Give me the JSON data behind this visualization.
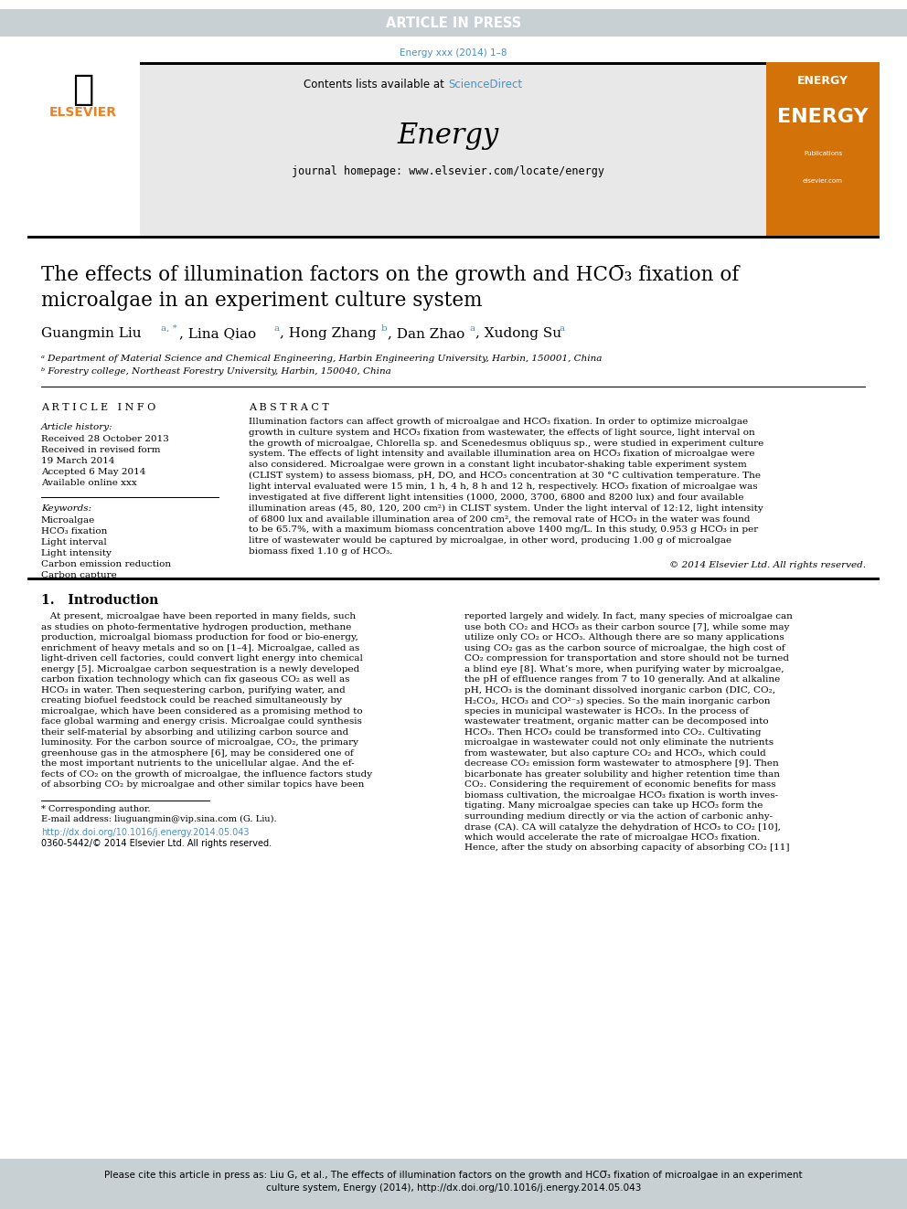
{
  "article_in_press_bg": "#c8d0d4",
  "article_in_press_text": "ARTICLE IN PRESS",
  "journal_ref": "Energy xxx (2014) 1–8",
  "journal_ref_color": "#4a90c4",
  "contents_text": "Contents lists available at ",
  "science_direct": "ScienceDirect",
  "science_direct_color": "#4a90c4",
  "journal_name": "Energy",
  "journal_homepage": "journal homepage: www.elsevier.com/locate/energy",
  "elsevier_color": "#f08020",
  "article_info_header": "A R T I C L E   I N F O",
  "abstract_header": "A B S T R A C T",
  "article_history_label": "Article history:",
  "received": "Received 28 October 2013",
  "received_revised": "Received in revised form",
  "revised_date": "19 March 2014",
  "accepted": "Accepted 6 May 2014",
  "available": "Available online xxx",
  "keywords_label": "Keywords:",
  "kw1": "Microalgae",
  "kw2": "HCO̅₃ fixation",
  "kw3": "Light interval",
  "kw4": "Light intensity",
  "kw5": "Carbon emission reduction",
  "kw6": "Carbon capture",
  "abstract_lines": [
    "Illumination factors can affect growth of microalgae and HCO̅₃ fixation. In order to optimize microalgae",
    "growth in culture system and HCO̅₃ fixation from wastewater, the effects of light source, light interval on",
    "the growth of microalgae, Chlorella sp. and Scenedesmus obliquus sp., were studied in experiment culture",
    "system. The effects of light intensity and available illumination area on HCO̅₃ fixation of microalgae were",
    "also considered. Microalgae were grown in a constant light incubator-shaking table experiment system",
    "(CLIST system) to assess biomass, pH, DO, and HCO̅₃ concentration at 30 °C cultivation temperature. The",
    "light interval evaluated were 15 min, 1 h, 4 h, 8 h and 12 h, respectively. HCO̅₃ fixation of microalgae was",
    "investigated at five different light intensities (1000, 2000, 3700, 6800 and 8200 lux) and four available",
    "illumination areas (45, 80, 120, 200 cm²) in CLIST system. Under the light interval of 12:12, light intensity",
    "of 6800 lux and available illumination area of 200 cm², the removal rate of HCO̅₃ in the water was found",
    "to be 65.7%, with a maximum biomass concentration above 1400 mg/L. In this study, 0.953 g HCO̅₃ in per",
    "litre of wastewater would be captured by microalgae, in other word, producing 1.00 g of microalgae",
    "biomass fixed 1.10 g of HCO̅₃."
  ],
  "copyright": "© 2014 Elsevier Ltd. All rights reserved.",
  "intro_header": "1.   Introduction",
  "intro_col1_lines": [
    "   At present, microalgae have been reported in many fields, such",
    "as studies on photo-fermentative hydrogen production, methane",
    "production, microalgal biomass production for food or bio-energy,",
    "enrichment of heavy metals and so on [1–4]. Microalgae, called as",
    "light-driven cell factories, could convert light energy into chemical",
    "energy [5]. Microalgae carbon sequestration is a newly developed",
    "carbon fixation technology which can fix gaseous CO₂ as well as",
    "HCO̅₃ in water. Then sequestering carbon, purifying water, and",
    "creating biofuel feedstock could be reached simultaneously by",
    "microalgae, which have been considered as a promising method to",
    "face global warming and energy crisis. Microalgae could synthesis",
    "their self-material by absorbing and utilizing carbon source and",
    "luminosity. For the carbon source of microalgae, CO₂, the primary",
    "greenhouse gas in the atmosphere [6], may be considered one of",
    "the most important nutrients to the unicellular algae. And the ef-",
    "fects of CO₂ on the growth of microalgae, the influence factors study",
    "of absorbing CO₂ by microalgae and other similar topics have been"
  ],
  "intro_col2_lines": [
    "reported largely and widely. In fact, many species of microalgae can",
    "use both CO₂ and HCO̅₃ as their carbon source [7], while some may",
    "utilize only CO₂ or HCO̅₃. Although there are so many applications",
    "using CO₂ gas as the carbon source of microalgae, the high cost of",
    "CO₂ compression for transportation and store should not be turned",
    "a blind eye [8]. What’s more, when purifying water by microalgae,",
    "the pH of effluence ranges from 7 to 10 generally. And at alkaline",
    "pH, HCO̅₃ is the dominant dissolved inorganic carbon (DIC, CO₂,",
    "H₂CO₃, HCO̅₃ and CO²⁻₃) species. So the main inorganic carbon",
    "species in municipal wastewater is HCO̅₃. In the process of",
    "wastewater treatment, organic matter can be decomposed into",
    "HCO̅₃. Then HCO̅₃ could be transformed into CO₂. Cultivating",
    "microalgae in wastewater could not only eliminate the nutrients",
    "from wastewater, but also capture CO₂ and HCO̅₃, which could",
    "decrease CO₂ emission form wastewater to atmosphere [9]. Then",
    "bicarbonate has greater solubility and higher retention time than",
    "CO₂. Considering the requirement of economic benefits for mass",
    "biomass cultivation, the microalgae HCO̅₃ fixation is worth inves-",
    "tigating. Many microalgae species can take up HCO̅₃ form the",
    "surrounding medium directly or via the action of carbonic anhy-",
    "drase (CA). CA will catalyze the dehydration of HCO̅₃ to CO₂ [10],",
    "which would accelerate the rate of microalgae HCO̅₃ fixation.",
    "Hence, after the study on absorbing capacity of absorbing CO₂ [11]"
  ],
  "footnote_star": "* Corresponding author.",
  "footnote_email": "E-mail address: liuguangmin@vip.sina.com (G. Liu).",
  "doi_link": "http://dx.doi.org/10.1016/j.energy.2014.05.043",
  "issn": "0360-5442/© 2014 Elsevier Ltd. All rights reserved.",
  "cite_line1": "Please cite this article in press as: Liu G, et al., The effects of illumination factors on the growth and HCO̅₃ fixation of microalgae in an experiment",
  "cite_line2": "culture system, Energy (2014), http://dx.doi.org/10.1016/j.energy.2014.05.043",
  "cite_bg": "#c8d0d4"
}
